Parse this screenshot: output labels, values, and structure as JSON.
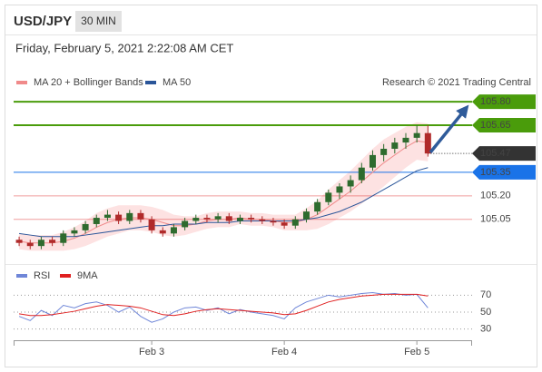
{
  "header": {
    "symbol": "USD/JPY",
    "timeframe": "30 MIN",
    "timestamp": "Friday, February 5, 2021 2:22:08 AM CET"
  },
  "chart_data": [
    {
      "type": "candlestick",
      "credit": "Research © 2021 Trading Central",
      "up_color": "#2e6b2e",
      "down_color": "#b02a2a",
      "x": [
        -24,
        -22,
        -20,
        -18,
        -16,
        -14,
        -12,
        -10,
        -8,
        -6,
        -4,
        -2,
        0,
        2,
        4,
        6,
        8,
        10,
        12,
        14,
        16,
        18,
        20,
        22,
        24,
        26,
        28,
        30,
        32,
        34,
        36,
        38,
        40,
        42,
        44,
        46,
        48,
        50
      ],
      "candles": [
        [
          104.92,
          104.94,
          104.88,
          104.9
        ],
        [
          104.9,
          104.92,
          104.86,
          104.88
        ],
        [
          104.88,
          104.94,
          104.86,
          104.92
        ],
        [
          104.92,
          104.94,
          104.88,
          104.9
        ],
        [
          104.9,
          104.98,
          104.88,
          104.96
        ],
        [
          104.96,
          105.0,
          104.94,
          104.98
        ],
        [
          104.98,
          105.04,
          104.96,
          105.02
        ],
        [
          105.02,
          105.08,
          105.0,
          105.06
        ],
        [
          105.06,
          105.11,
          105.04,
          105.08
        ],
        [
          105.08,
          105.1,
          105.02,
          105.04
        ],
        [
          105.04,
          105.11,
          105.02,
          105.09
        ],
        [
          105.09,
          105.11,
          105.03,
          105.05
        ],
        [
          105.05,
          105.07,
          104.96,
          104.98
        ],
        [
          104.98,
          105.0,
          104.94,
          104.96
        ],
        [
          104.96,
          105.02,
          104.94,
          105.0
        ],
        [
          105.0,
          105.06,
          104.98,
          105.04
        ],
        [
          105.04,
          105.08,
          105.02,
          105.06
        ],
        [
          105.06,
          105.08,
          105.03,
          105.05
        ],
        [
          105.05,
          105.09,
          105.03,
          105.07
        ],
        [
          105.07,
          105.09,
          105.02,
          105.04
        ],
        [
          105.04,
          105.08,
          105.02,
          105.06
        ],
        [
          105.06,
          105.08,
          105.03,
          105.05
        ],
        [
          105.05,
          105.07,
          105.02,
          105.04
        ],
        [
          105.04,
          105.06,
          105.01,
          105.03
        ],
        [
          105.03,
          105.05,
          104.99,
          105.01
        ],
        [
          105.01,
          105.07,
          104.99,
          105.05
        ],
        [
          105.05,
          105.12,
          105.03,
          105.1
        ],
        [
          105.1,
          105.18,
          105.08,
          105.16
        ],
        [
          105.16,
          105.24,
          105.14,
          105.22
        ],
        [
          105.22,
          105.28,
          105.18,
          105.26
        ],
        [
          105.26,
          105.33,
          105.22,
          105.3
        ],
        [
          105.3,
          105.41,
          105.28,
          105.38
        ],
        [
          105.38,
          105.49,
          105.36,
          105.46
        ],
        [
          105.46,
          105.53,
          105.42,
          105.5
        ],
        [
          105.5,
          105.57,
          105.47,
          105.54
        ],
        [
          105.54,
          105.6,
          105.5,
          105.57
        ],
        [
          105.57,
          105.65,
          105.54,
          105.6
        ],
        [
          105.6,
          105.65,
          105.45,
          105.47
        ]
      ],
      "indicators": [
        {
          "name": "MA 20 + Bollinger Bands",
          "color": "#f08a8a",
          "fill": "#fde2e2",
          "values": [
            104.91,
            104.9,
            104.9,
            104.9,
            104.91,
            104.93,
            104.96,
            105.0,
            105.03,
            105.05,
            105.06,
            105.06,
            105.05,
            105.03,
            105.01,
            105.01,
            105.02,
            105.04,
            105.05,
            105.05,
            105.06,
            105.05,
            105.05,
            105.04,
            105.03,
            105.03,
            105.05,
            105.08,
            105.13,
            105.18,
            105.23,
            105.29,
            105.35,
            105.41,
            105.46,
            105.51,
            105.55,
            105.54
          ],
          "upper": [
            104.96,
            104.95,
            104.95,
            104.95,
            104.97,
            105.0,
            105.04,
            105.09,
            105.12,
            105.14,
            105.14,
            105.14,
            105.13,
            105.11,
            105.08,
            105.07,
            105.07,
            105.09,
            105.1,
            105.1,
            105.1,
            105.09,
            105.09,
            105.08,
            105.08,
            105.08,
            105.12,
            105.17,
            105.24,
            105.3,
            105.36,
            105.43,
            105.5,
            105.56,
            105.6,
            105.64,
            105.67,
            105.66
          ],
          "lower": [
            104.86,
            104.85,
            104.85,
            104.85,
            104.85,
            104.86,
            104.88,
            104.91,
            104.94,
            104.96,
            104.98,
            104.98,
            104.97,
            104.95,
            104.94,
            104.95,
            104.97,
            104.99,
            105.0,
            105.0,
            105.02,
            105.01,
            105.01,
            105.0,
            104.98,
            104.98,
            104.98,
            104.99,
            105.02,
            105.06,
            105.1,
            105.15,
            105.2,
            105.26,
            105.32,
            105.38,
            105.43,
            105.42
          ]
        },
        {
          "name": "MA 50",
          "color": "#2a5599",
          "values": [
            104.96,
            104.95,
            104.94,
            104.94,
            104.94,
            104.94,
            104.95,
            104.96,
            104.97,
            104.98,
            104.99,
            105.0,
            105.01,
            105.01,
            105.02,
            105.02,
            105.02,
            105.03,
            105.03,
            105.03,
            105.04,
            105.04,
            105.04,
            105.04,
            105.04,
            105.04,
            105.05,
            105.06,
            105.08,
            105.1,
            105.13,
            105.16,
            105.2,
            105.24,
            105.28,
            105.32,
            105.36,
            105.38
          ]
        }
      ],
      "levels": [
        {
          "value": 105.8,
          "label": "105.80",
          "color": "#4a9c0b",
          "style": "tag",
          "line": "thick"
        },
        {
          "value": 105.65,
          "label": "105.65",
          "color": "#4a9c0b",
          "style": "tag",
          "line": "thick"
        },
        {
          "value": 105.47,
          "label": "105.47",
          "color": "#333333",
          "style": "tag",
          "line": "dotted"
        },
        {
          "value": 105.35,
          "label": "105.35",
          "color": "#1a73e8",
          "style": "tag",
          "line": "thin"
        },
        {
          "value": 105.2,
          "label": "105.20",
          "color": "#e02828",
          "style": "text",
          "line": "thin"
        },
        {
          "value": 105.05,
          "label": "105.05",
          "color": "#e02828",
          "style": "text",
          "line": "thin"
        }
      ],
      "xlim": [
        -25,
        58
      ],
      "ylim": [
        104.8,
        105.87
      ],
      "xticks": [
        {
          "value": 0,
          "label": "Feb 3"
        },
        {
          "value": 24,
          "label": "Feb 4"
        },
        {
          "value": 48,
          "label": "Feb 5"
        }
      ]
    },
    {
      "type": "line",
      "series": [
        {
          "name": "RSI",
          "color": "#6f86d8",
          "values": [
            45,
            40,
            52,
            46,
            58,
            55,
            60,
            62,
            58,
            50,
            56,
            45,
            38,
            42,
            50,
            55,
            56,
            52,
            55,
            48,
            53,
            50,
            48,
            46,
            42,
            55,
            62,
            66,
            70,
            68,
            70,
            72,
            73,
            71,
            72,
            70,
            71,
            55
          ]
        },
        {
          "name": "9MA",
          "color": "#e02020",
          "values": [
            48,
            46,
            46,
            47,
            49,
            51,
            54,
            57,
            59,
            58,
            57,
            55,
            51,
            47,
            46,
            48,
            51,
            53,
            54,
            53,
            52,
            51,
            50,
            49,
            47,
            48,
            52,
            57,
            62,
            65,
            67,
            69,
            70,
            71,
            71,
            71,
            71,
            69
          ]
        }
      ],
      "ylim": [
        20,
        80
      ],
      "yticks": [
        70,
        50,
        30
      ]
    }
  ]
}
